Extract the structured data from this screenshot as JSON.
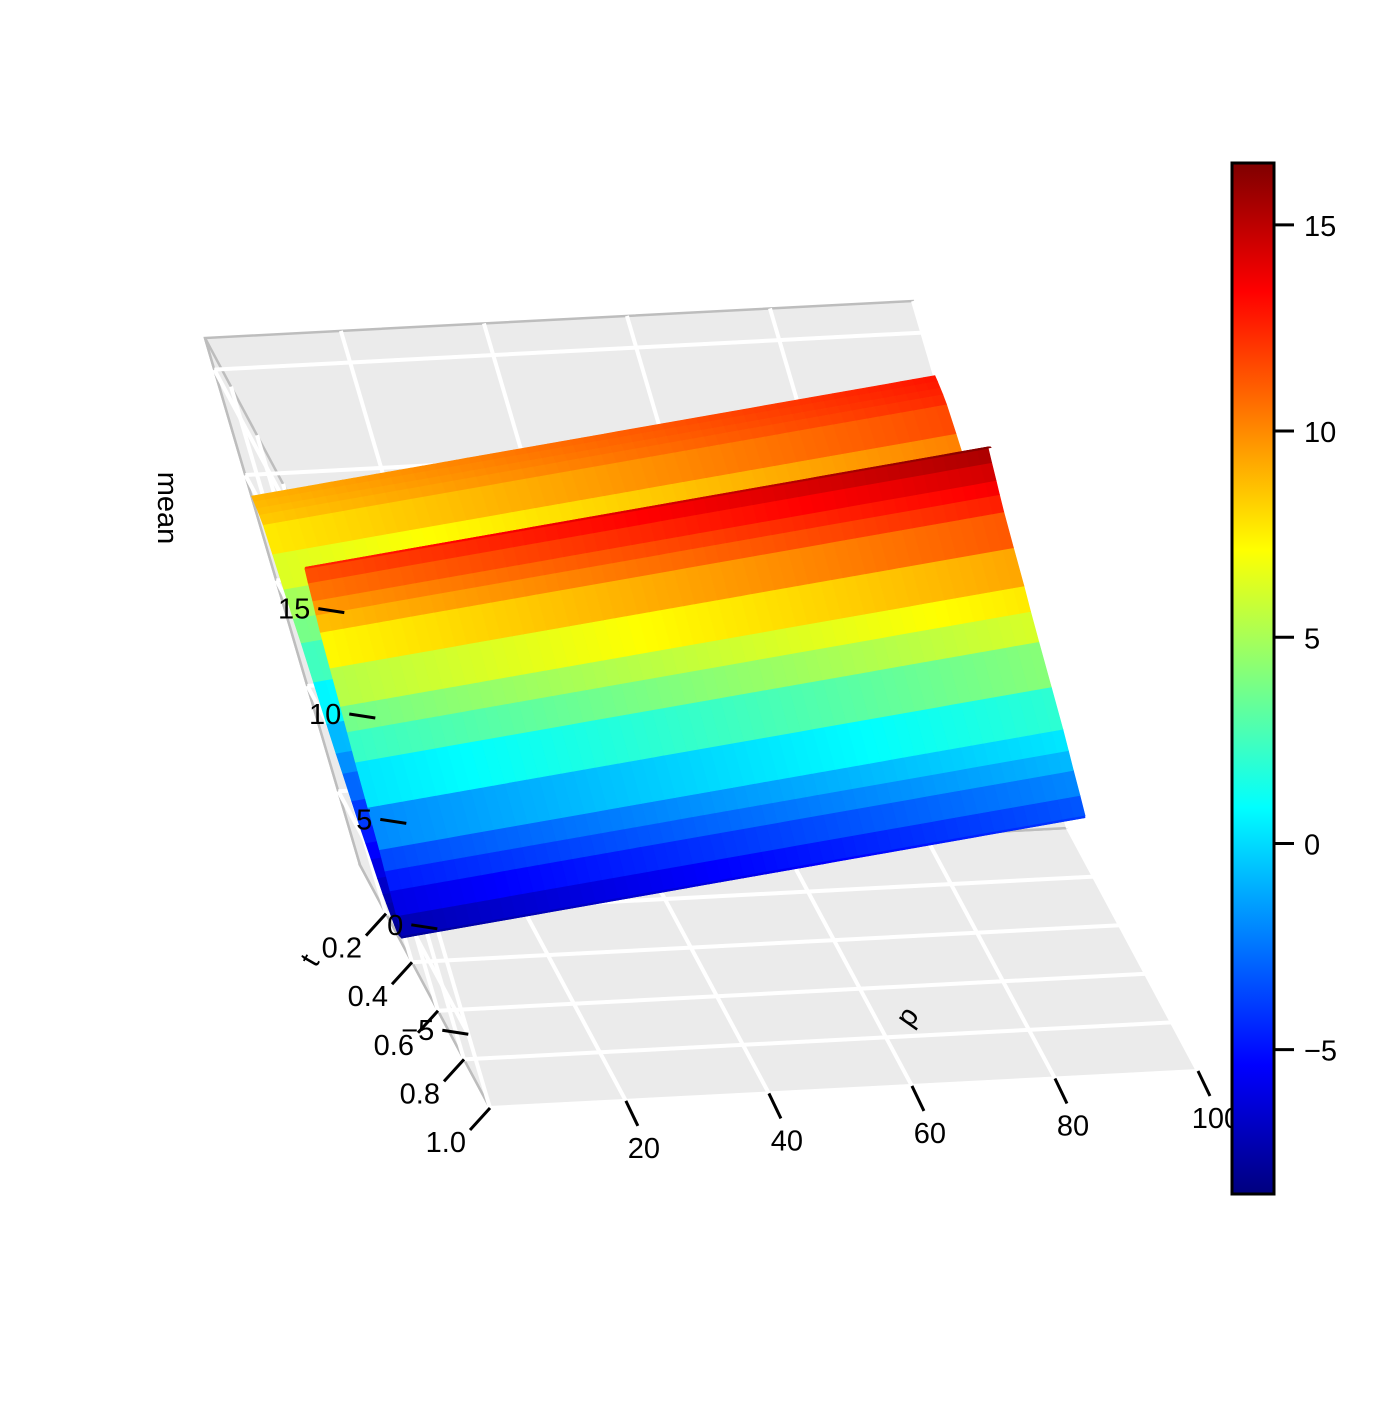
{
  "chart_data": {
    "type": "surface3d",
    "zlabel": "mean",
    "xlabel": "p",
    "ylabel": "t",
    "x_ticks": [
      "20",
      "40",
      "60",
      "80",
      "100"
    ],
    "y_ticks": [
      "0.2",
      "0.4",
      "0.6",
      "0.8",
      "1.0"
    ],
    "z_ticks": [
      "15",
      "10",
      "5",
      "0",
      "−5"
    ],
    "colorbar_ticks": [
      "15",
      "10",
      "5",
      "0",
      "−5"
    ],
    "xlim": [
      1,
      100
    ],
    "ylim": [
      0,
      1
    ],
    "zlim": [
      -8.5,
      16.5
    ],
    "colorbar_range": [
      -8.5,
      16.5
    ],
    "colormap": [
      "#00007f",
      "#0000ff",
      "#007fff",
      "#00ffff",
      "#7fff7f",
      "#ffff00",
      "#ff7f00",
      "#ff0000",
      "#7f0000"
    ],
    "grid": true,
    "pane_color": "#ebebeb",
    "function_of_t": {
      "t": [
        0.0,
        0.05,
        0.1,
        0.15,
        0.2,
        0.25,
        0.3,
        0.35,
        0.4,
        0.45,
        0.5,
        0.55,
        0.6
      ],
      "mean": [
        9.0,
        8.5,
        4.0,
        -1.5,
        -5.0,
        -7.2,
        -8.3,
        -8.0,
        -4.0,
        3.0,
        9.0,
        12.0,
        12.5
      ]
    },
    "slope_along_p": 0.04
  }
}
